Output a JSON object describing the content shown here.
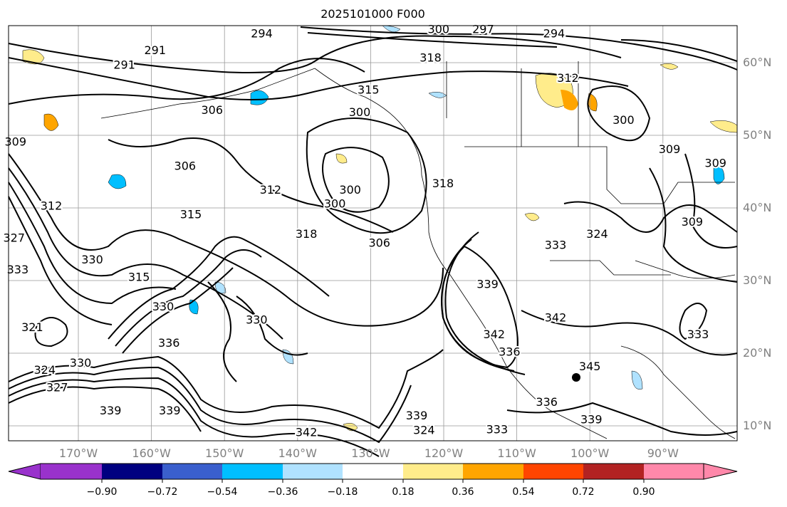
{
  "title": "2025101000 F000",
  "map": {
    "lon_range": [
      -180,
      -80.3
    ],
    "lat_range": [
      8,
      65
    ],
    "lat_labels": [
      "60°N",
      "50°N",
      "40°N",
      "30°N",
      "20°N",
      "10°N"
    ],
    "lat_values": [
      60,
      50,
      40,
      30,
      20,
      10
    ],
    "lon_labels": [
      "170°W",
      "160°W",
      "150°W",
      "140°W",
      "130°W",
      "120°W",
      "110°W",
      "100°W",
      "90°W"
    ],
    "lon_values": [
      -170,
      -160,
      -150,
      -140,
      -130,
      -120,
      -110,
      -100,
      -90
    ],
    "contour_labels": [
      {
        "t": "294",
        "lon": -144.9,
        "lat": 63.9
      },
      {
        "t": "300",
        "lon": -120.7,
        "lat": 64.5
      },
      {
        "t": "297",
        "lon": -114.6,
        "lat": 64.5
      },
      {
        "t": "294",
        "lon": -104.9,
        "lat": 63.9
      },
      {
        "t": "291",
        "lon": -159.5,
        "lat": 61.6
      },
      {
        "t": "291",
        "lon": -163.7,
        "lat": 59.6
      },
      {
        "t": "318",
        "lon": -121.8,
        "lat": 60.6
      },
      {
        "t": "315",
        "lon": -130.3,
        "lat": 56.2
      },
      {
        "t": "312",
        "lon": -103.0,
        "lat": 57.8
      },
      {
        "t": "306",
        "lon": -151.7,
        "lat": 53.4
      },
      {
        "t": "300",
        "lon": -131.5,
        "lat": 53.1
      },
      {
        "t": "300",
        "lon": -95.4,
        "lat": 52.0
      },
      {
        "t": "309",
        "lon": -178.6,
        "lat": 49.0
      },
      {
        "t": "306",
        "lon": -155.4,
        "lat": 45.7
      },
      {
        "t": "309",
        "lon": -89.1,
        "lat": 48.0
      },
      {
        "t": "309",
        "lon": -82.8,
        "lat": 46.1
      },
      {
        "t": "312",
        "lon": -143.7,
        "lat": 42.4
      },
      {
        "t": "300",
        "lon": -132.8,
        "lat": 42.4
      },
      {
        "t": "300",
        "lon": -134.9,
        "lat": 40.5
      },
      {
        "t": "318",
        "lon": -120.1,
        "lat": 43.3
      },
      {
        "t": "312",
        "lon": -173.7,
        "lat": 40.2
      },
      {
        "t": "315",
        "lon": -154.6,
        "lat": 39.0
      },
      {
        "t": "318",
        "lon": -138.8,
        "lat": 36.3
      },
      {
        "t": "306",
        "lon": -128.8,
        "lat": 35.1
      },
      {
        "t": "309",
        "lon": -86.0,
        "lat": 38.0
      },
      {
        "t": "327",
        "lon": -178.8,
        "lat": 35.8
      },
      {
        "t": "333",
        "lon": -104.7,
        "lat": 34.8
      },
      {
        "t": "324",
        "lon": -99.0,
        "lat": 36.3
      },
      {
        "t": "330",
        "lon": -168.1,
        "lat": 32.8
      },
      {
        "t": "333",
        "lon": -178.3,
        "lat": 31.4
      },
      {
        "t": "315",
        "lon": -161.7,
        "lat": 30.4
      },
      {
        "t": "330",
        "lon": -158.4,
        "lat": 26.3
      },
      {
        "t": "339",
        "lon": -114.0,
        "lat": 29.4
      },
      {
        "t": "342",
        "lon": -104.7,
        "lat": 24.8
      },
      {
        "t": "330",
        "lon": -145.6,
        "lat": 24.5
      },
      {
        "t": "321",
        "lon": -176.3,
        "lat": 23.5
      },
      {
        "t": "342",
        "lon": -113.1,
        "lat": 22.5
      },
      {
        "t": "336",
        "lon": -111.0,
        "lat": 20.1
      },
      {
        "t": "336",
        "lon": -157.6,
        "lat": 21.3
      },
      {
        "t": "330",
        "lon": -169.7,
        "lat": 18.6
      },
      {
        "t": "324",
        "lon": -174.6,
        "lat": 17.6
      },
      {
        "t": "327",
        "lon": -172.9,
        "lat": 15.2
      },
      {
        "t": "345",
        "lon": -100.0,
        "lat": 18.1
      },
      {
        "t": "336",
        "lon": -105.9,
        "lat": 13.2
      },
      {
        "t": "339",
        "lon": -165.6,
        "lat": 12.0
      },
      {
        "t": "339",
        "lon": -157.5,
        "lat": 12.0
      },
      {
        "t": "339",
        "lon": -123.7,
        "lat": 11.3
      },
      {
        "t": "339",
        "lon": -99.8,
        "lat": 10.8
      },
      {
        "t": "333",
        "lon": -112.7,
        "lat": 9.4
      },
      {
        "t": "342",
        "lon": -138.8,
        "lat": 9.0
      },
      {
        "t": "324",
        "lon": -122.7,
        "lat": 9.3
      },
      {
        "t": "333",
        "lon": -85.2,
        "lat": 22.5
      }
    ]
  },
  "colorbar": {
    "colors": [
      "#9932CC",
      "#000080",
      "#3A5FCD",
      "#00BFFF",
      "#B0E2FF",
      "#FFFFFF",
      "#FFEC8B",
      "#FFA500",
      "#FF4500",
      "#B22222",
      "#FF88AA"
    ],
    "ticks": [
      "−0.90",
      "−0.72",
      "−0.54",
      "−0.36",
      "−0.18",
      "0.18",
      "0.36",
      "0.54",
      "0.72",
      "0.90"
    ]
  }
}
